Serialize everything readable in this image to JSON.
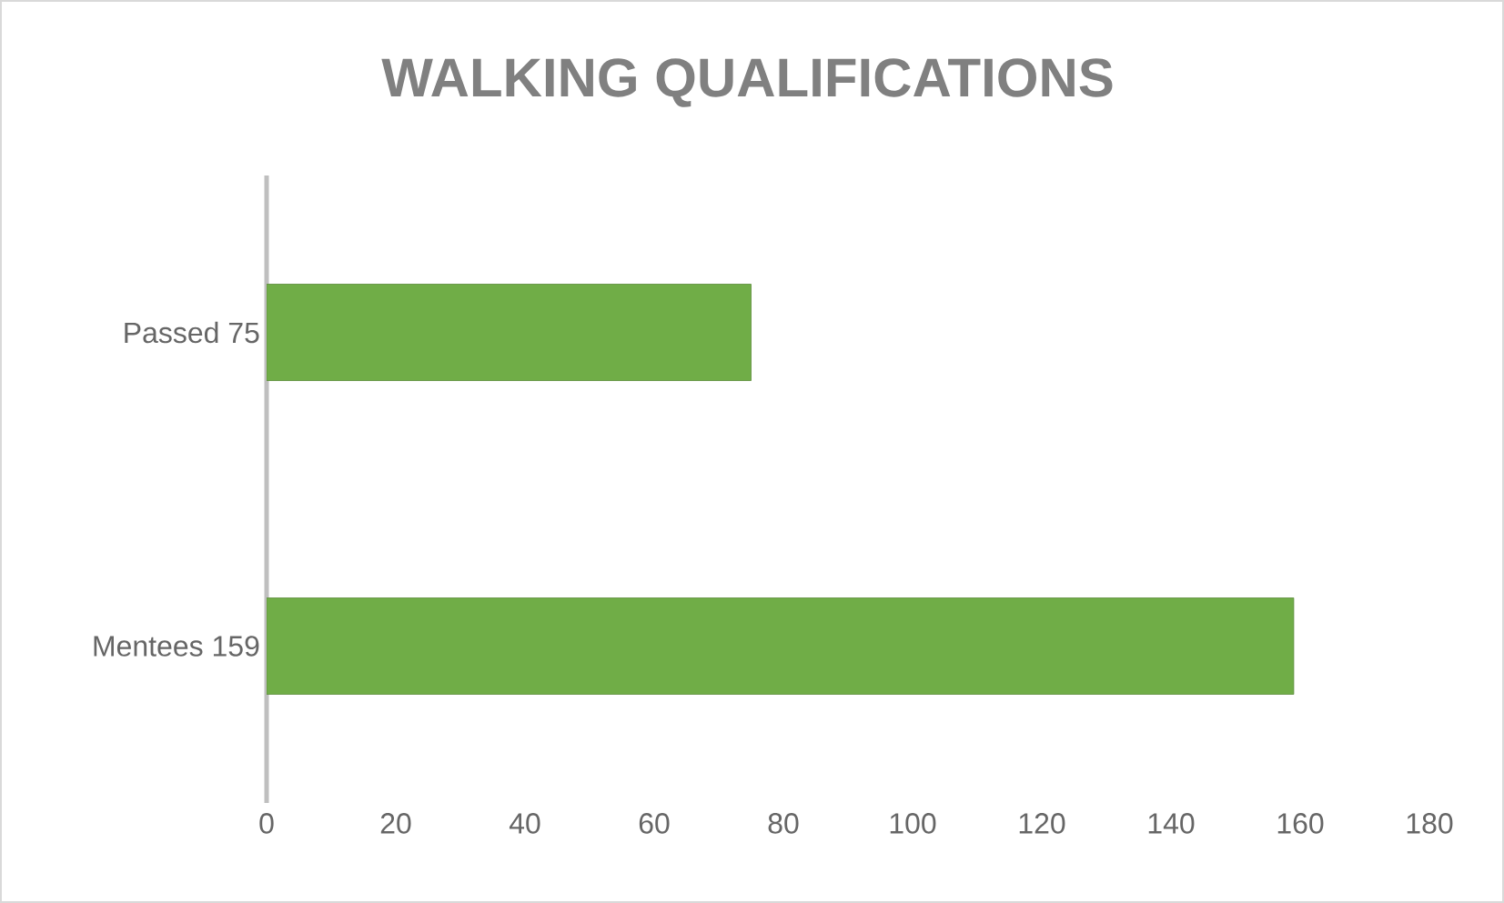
{
  "chart_data": {
    "type": "bar",
    "orientation": "horizontal",
    "title": "WALKING QUALIFICATIONS",
    "categories": [
      "Passed 75",
      "Mentees 159"
    ],
    "values": [
      75,
      159
    ],
    "color": "#70ad47",
    "xlim": [
      0,
      180
    ],
    "xticks": [
      0,
      20,
      40,
      60,
      80,
      100,
      120,
      140,
      160,
      180
    ],
    "grid": false
  }
}
